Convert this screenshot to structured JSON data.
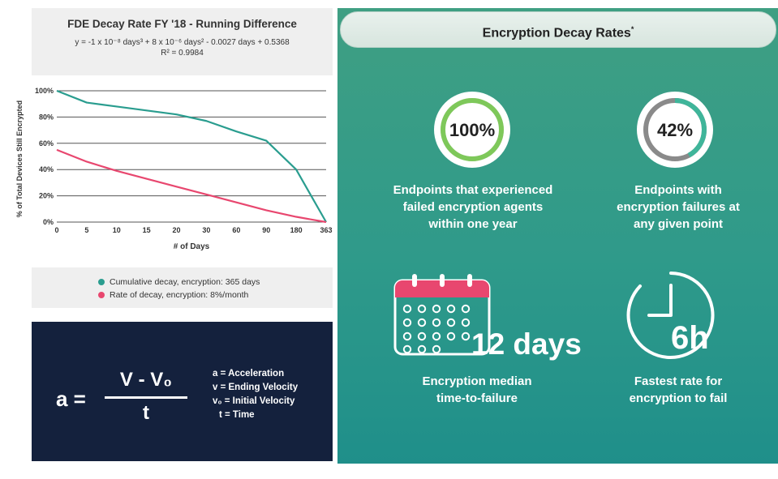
{
  "chart_data": {
    "type": "line",
    "title": "FDE Decay Rate FY '18 - Running Difference",
    "equation_line1": "y = -1 x 10⁻⁸ days³ + 8 x 10⁻⁶ days² - 0.0027 days + 0.5368",
    "equation_line2": "R² = 0.9984",
    "xlabel": "# of Days",
    "ylabel": "% of Total Devices Still Encrypted",
    "categories": [
      "0",
      "5",
      "10",
      "15",
      "20",
      "30",
      "60",
      "90",
      "180",
      "363"
    ],
    "yticks": [
      "0%",
      "20%",
      "40%",
      "60%",
      "80%",
      "100%"
    ],
    "ylim": [
      0,
      100
    ],
    "grid": true,
    "legend_placement": "below",
    "series": [
      {
        "name": "Cumulative decay, encryption: 365 days",
        "color": "#2a9d8f",
        "values": [
          100,
          91,
          88,
          85,
          82,
          77,
          69,
          62,
          40,
          0
        ]
      },
      {
        "name": "Rate of decay, encryption: 8%/month",
        "color": "#e8476f",
        "values": [
          55,
          46,
          39,
          33,
          27,
          21,
          15,
          9,
          4,
          0
        ]
      }
    ]
  },
  "formula": {
    "lhs": "a =",
    "numerator": "V - V₀",
    "denominator": "t",
    "definitions": [
      "a = Acceleration",
      "v = Ending Velocity",
      "v₀ = Initial Velocity",
      "t = Time"
    ]
  },
  "panel": {
    "title": "Encryption Decay Rates",
    "title_mark": "*",
    "stat1": {
      "value": "100%",
      "fraction": 1.0,
      "caption": [
        "Endpoints that experienced",
        "failed encryption agents",
        "within one year"
      ]
    },
    "stat2": {
      "value": "42%",
      "fraction": 0.42,
      "caption": [
        "Endpoints with",
        "encryption failures at",
        "any given point"
      ]
    },
    "stat3": {
      "value": "12 days",
      "icon": "calendar-icon",
      "caption": [
        "Encryption median",
        "time-to-failure"
      ]
    },
    "stat4": {
      "value": "6h",
      "icon": "clock-icon",
      "caption": [
        "Fastest rate for",
        "encryption to fail"
      ]
    }
  }
}
